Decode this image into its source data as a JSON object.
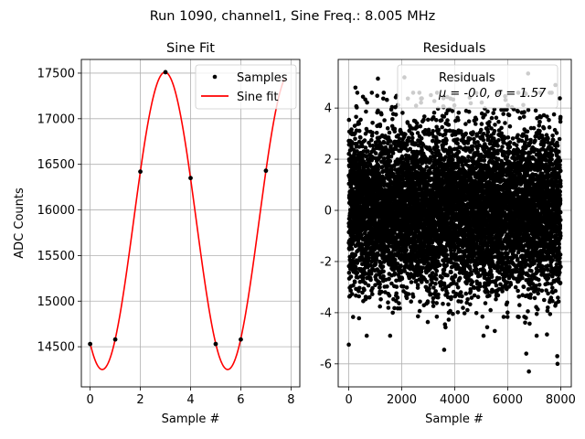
{
  "suptitle": "Run 1090, channel1, Sine Freq.: 8.005 MHz",
  "chart_data": [
    {
      "type": "line",
      "title": "Sine Fit",
      "xlabel": "Sample #",
      "ylabel": "ADC Counts",
      "xlim": [
        -0.35,
        8.35
      ],
      "ylim": [
        14060,
        17650
      ],
      "xticks": [
        0,
        2,
        4,
        6,
        8
      ],
      "yticks": [
        14500,
        15000,
        15500,
        16000,
        16500,
        17000,
        17500
      ],
      "grid": true,
      "legend_position": "top-right",
      "series": [
        {
          "name": "Samples",
          "style": "points",
          "color": "#000000",
          "x": [
            0,
            1,
            2,
            3,
            4,
            5,
            6,
            7
          ],
          "y": [
            14530,
            14580,
            16420,
            17510,
            16350,
            14530,
            14580,
            16430
          ]
        },
        {
          "name": "Sine fit",
          "style": "line",
          "color": "#ff0000",
          "offset": 15880,
          "amplitude": 1630,
          "period_samples": 4.997,
          "peak_at_sample": 2.98,
          "x_range": [
            0,
            7.75
          ]
        }
      ]
    },
    {
      "type": "scatter",
      "title": "Residuals",
      "xlabel": "Sample #",
      "xlim": [
        -400,
        8400
      ],
      "ylim": [
        -6.9,
        5.9
      ],
      "xticks": [
        0,
        2000,
        4000,
        6000,
        8000
      ],
      "yticks": [
        -6,
        -4,
        -2,
        0,
        2,
        4
      ],
      "grid": true,
      "legend_position": "top-right",
      "series": [
        {
          "name": "Residuals",
          "color": "#000000",
          "n_points": 8000,
          "x_range": [
            0,
            7999
          ],
          "mean": -0.0,
          "sigma": 1.57,
          "outliers": [
            {
              "x": 6800,
              "y": -6.3
            },
            {
              "x": 7880,
              "y": -6.0
            },
            {
              "x": 7870,
              "y": -5.7
            },
            {
              "x": 6700,
              "y": -5.6
            },
            {
              "x": 0,
              "y": -5.25
            },
            {
              "x": 3600,
              "y": -5.45
            },
            {
              "x": 6770,
              "y": 5.35
            },
            {
              "x": 2100,
              "y": 5.2
            },
            {
              "x": 250,
              "y": 4.8
            },
            {
              "x": 1100,
              "y": 5.15
            },
            {
              "x": 7800,
              "y": 4.9
            }
          ]
        }
      ],
      "legend_stats": "μ = -0.0, σ = 1.57"
    }
  ]
}
